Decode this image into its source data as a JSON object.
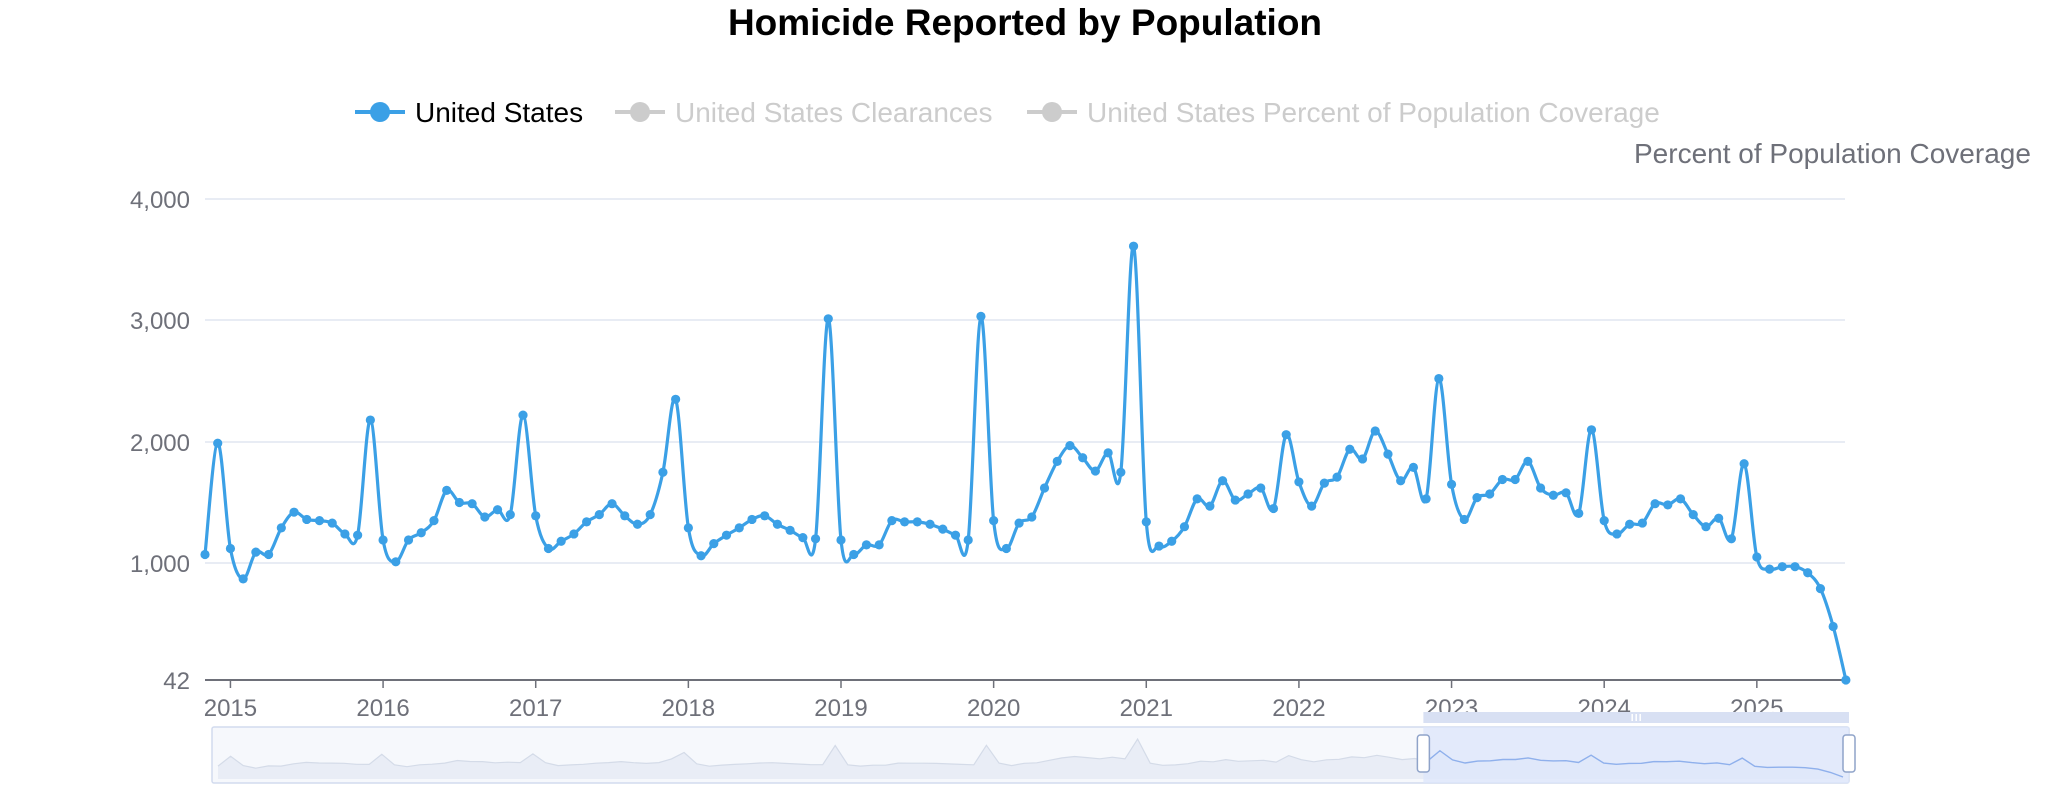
{
  "chart_data": {
    "type": "line",
    "title": "Homicide Reported by Population",
    "legend": {
      "placement": "top-center",
      "items": [
        {
          "name": "United States",
          "active": true,
          "color": "#3ba0e6"
        },
        {
          "name": "United States Clearances",
          "active": false,
          "color": "#cccccc"
        },
        {
          "name": "United States Percent of Population Coverage",
          "active": false,
          "color": "#cccccc"
        }
      ]
    },
    "secondary_axis_label": "Percent of Population Coverage",
    "y_ticks": [
      "4,000",
      "3,000",
      "2,000",
      "1,000",
      "42"
    ],
    "y_tick_values": [
      4000,
      3000,
      2000,
      1000,
      42
    ],
    "ylim": [
      42,
      4000
    ],
    "x_ticks": [
      "2015",
      "2016",
      "2017",
      "2018",
      "2019",
      "2020",
      "2021",
      "2022",
      "2023",
      "2024",
      "2025"
    ],
    "grid": true,
    "colors": {
      "series": "#3ba0e6",
      "grid": "#e0e6f1",
      "axis": "#6e7079",
      "inactive": "#cccccc",
      "zoom_fill": "#dce6fb"
    },
    "data_zoom": {
      "start": 0.74,
      "end": 1.0
    },
    "series": [
      {
        "name": "United States",
        "start": "2014-11",
        "values": [
          1070,
          1990,
          1120,
          870,
          1090,
          1070,
          1290,
          1420,
          1360,
          1350,
          1330,
          1240,
          1230,
          2180,
          1190,
          1010,
          1190,
          1250,
          1350,
          1600,
          1500,
          1490,
          1380,
          1440,
          1400,
          2220,
          1390,
          1120,
          1180,
          1240,
          1340,
          1400,
          1490,
          1390,
          1320,
          1400,
          1750,
          2350,
          1290,
          1060,
          1160,
          1230,
          1290,
          1360,
          1390,
          1320,
          1270,
          1210,
          1200,
          3010,
          1190,
          1070,
          1150,
          1150,
          1350,
          1340,
          1340,
          1320,
          1280,
          1230,
          1190,
          3030,
          1350,
          1120,
          1330,
          1380,
          1620,
          1840,
          1970,
          1870,
          1760,
          1910,
          1750,
          3610,
          1340,
          1140,
          1180,
          1300,
          1530,
          1470,
          1680,
          1520,
          1570,
          1620,
          1450,
          2060,
          1670,
          1470,
          1660,
          1710,
          1940,
          1860,
          2090,
          1900,
          1680,
          1790,
          1530,
          2520,
          1650,
          1360,
          1540,
          1570,
          1690,
          1690,
          1840,
          1620,
          1560,
          1580,
          1410,
          2100,
          1350,
          1240,
          1320,
          1330,
          1490,
          1480,
          1530,
          1400,
          1300,
          1370,
          1200,
          1820,
          1050,
          950,
          970,
          970,
          920,
          790,
          480,
          42
        ]
      }
    ]
  }
}
